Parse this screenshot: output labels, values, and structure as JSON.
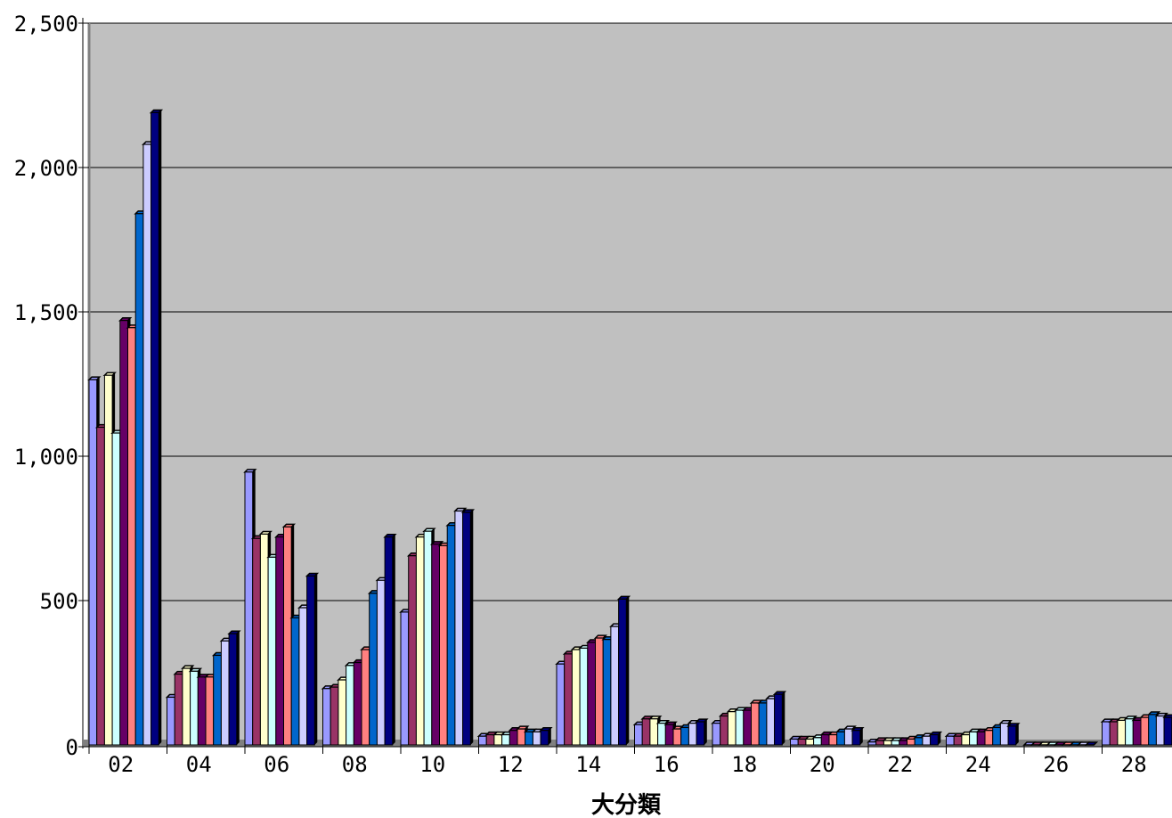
{
  "chart_data": {
    "type": "bar",
    "title": "",
    "xlabel": "大分類",
    "ylabel": "",
    "ylim": [
      0,
      2500
    ],
    "y_ticks": [
      "0",
      "500",
      "1,000",
      "1,500",
      "2,000",
      "2,500"
    ],
    "y_tick_values": [
      0,
      500,
      1000,
      1500,
      2000,
      2500
    ],
    "categories": [
      "02",
      "04",
      "06",
      "08",
      "10",
      "12",
      "14",
      "16",
      "18",
      "20",
      "22",
      "24",
      "26",
      "28"
    ],
    "grid": true,
    "legend": "none",
    "series": [
      {
        "values": [
          1265,
          165,
          945,
          195,
          460,
          30,
          280,
          70,
          75,
          20,
          10,
          30,
          0,
          80
        ],
        "color": "#9999ff"
      },
      {
        "values": [
          1100,
          245,
          715,
          200,
          655,
          35,
          315,
          90,
          100,
          20,
          15,
          30,
          0,
          80
        ],
        "color": "#993366"
      },
      {
        "values": [
          1280,
          265,
          730,
          225,
          720,
          35,
          330,
          90,
          115,
          20,
          15,
          35,
          0,
          85
        ],
        "color": "#ffffcc"
      },
      {
        "values": [
          1080,
          255,
          650,
          275,
          740,
          35,
          335,
          75,
          120,
          25,
          15,
          45,
          0,
          90
        ],
        "color": "#ccffff"
      },
      {
        "values": [
          1470,
          235,
          720,
          285,
          695,
          50,
          355,
          70,
          120,
          35,
          15,
          45,
          0,
          85
        ],
        "color": "#660066"
      },
      {
        "values": [
          1445,
          235,
          755,
          330,
          690,
          55,
          370,
          55,
          145,
          35,
          20,
          50,
          0,
          95
        ],
        "color": "#ff8080"
      },
      {
        "values": [
          1840,
          310,
          440,
          525,
          760,
          45,
          365,
          60,
          145,
          45,
          25,
          60,
          0,
          105
        ],
        "color": "#0066cc"
      },
      {
        "values": [
          2080,
          360,
          475,
          570,
          810,
          45,
          410,
          75,
          160,
          55,
          30,
          75,
          0,
          100
        ],
        "color": "#ccccff"
      },
      {
        "values": [
          2190,
          385,
          585,
          720,
          805,
          50,
          505,
          80,
          175,
          50,
          35,
          65,
          0,
          95
        ],
        "color": "#000080"
      }
    ]
  }
}
